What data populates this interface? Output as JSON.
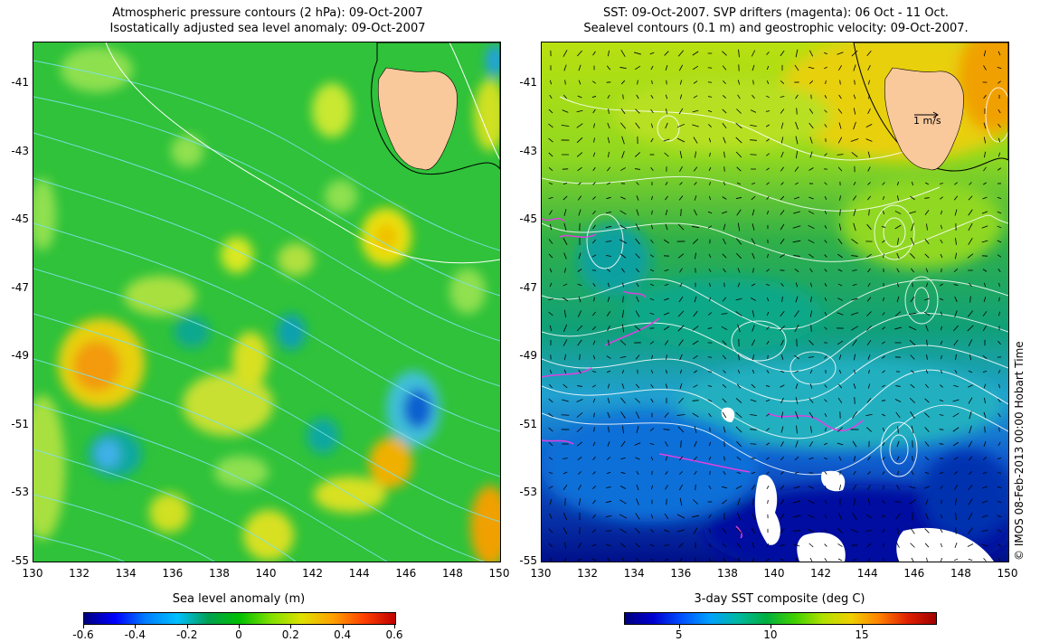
{
  "left_panel": {
    "title_line1": "Atmospheric pressure contours (2 hPa): 09-Oct-2007",
    "title_line2": "Isostatically adjusted sea level anomaly: 09-Oct-2007",
    "colorbar_label": "Sea level anomaly (m)",
    "colorbar_ticks": [
      "-0.6",
      "-0.4",
      "-0.2",
      "0",
      "0.2",
      "0.4",
      "0.6"
    ],
    "colorbar_range": [
      -0.6,
      0.6
    ]
  },
  "right_panel": {
    "title_line1": "SST: 09-Oct-2007. SVP drifters (magenta): 06 Oct - 11 Oct.",
    "title_line2": "Sealevel contours (0.1 m) and geostrophic velocity: 09-Oct-2007.",
    "colorbar_label": "3-day SST composite (deg C)",
    "colorbar_ticks": [
      "5",
      "10",
      "15"
    ],
    "colorbar_range": [
      2,
      19
    ],
    "velocity_scale_label": "1 m/s"
  },
  "axes": {
    "lon_ticks": [
      "130",
      "132",
      "134",
      "136",
      "138",
      "140",
      "142",
      "144",
      "146",
      "148",
      "150"
    ],
    "lat_ticks": [
      "-41",
      "-43",
      "-45",
      "-47",
      "-49",
      "-51",
      "-53",
      "-55"
    ],
    "lon_range": [
      130,
      150
    ],
    "lat_range": [
      -55,
      -39.8
    ]
  },
  "credit": "© IMOS 08-Feb-2013 00:00 Hobart Time",
  "colors": {
    "land": "#f9c89b",
    "sla_background": "#2fc23a",
    "drifter": "#e040e0",
    "contour_white": "#ffffff",
    "contour_cyan": "#7fe0e8"
  }
}
